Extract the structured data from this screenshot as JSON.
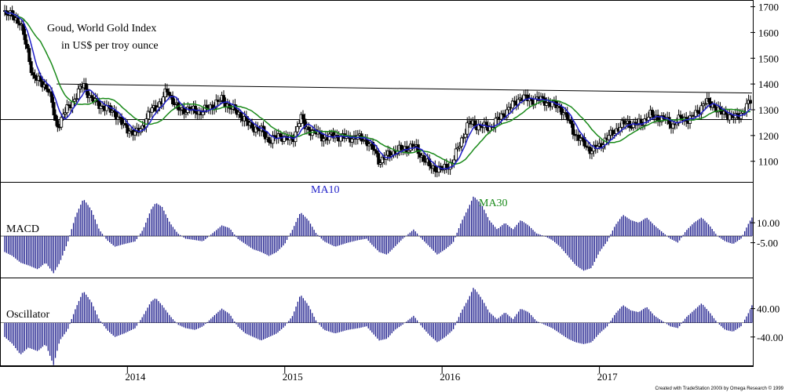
{
  "chart_data": [
    {
      "type": "candlestick",
      "title_line1": "Goud, World Gold Index",
      "title_line2": "in US$ per troy ounce",
      "yticks": [
        "1100",
        "1200",
        "1300",
        "1400",
        "1500",
        "1600",
        "1700"
      ],
      "ylim": [
        1020,
        1720
      ],
      "xlim": [
        2013.15,
        2017.92
      ],
      "xticks": [
        "2014",
        "2015",
        "2016",
        "2017"
      ],
      "ma10_label": "MA10",
      "ma30_label": "MA30",
      "colors": {
        "ma10": "#1f1fc8",
        "ma30": "#1a8a1a",
        "candle_up": "#ffffff",
        "candle_down": "#000000",
        "resistance": "#000000",
        "support": "#000000"
      },
      "resistance_line": {
        "x": [
          2013.5,
          2017.92
        ],
        "y": [
          1400,
          1365
        ]
      },
      "support_line": {
        "y": 1262
      },
      "closes": [
        [
          2013.17,
          1680
        ],
        [
          2013.27,
          1640
        ],
        [
          2013.35,
          1430
        ],
        [
          2013.45,
          1380
        ],
        [
          2013.5,
          1230
        ],
        [
          2013.55,
          1290
        ],
        [
          2013.6,
          1330
        ],
        [
          2013.67,
          1400
        ],
        [
          2013.72,
          1340
        ],
        [
          2013.8,
          1310
        ],
        [
          2013.87,
          1290
        ],
        [
          2013.92,
          1240
        ],
        [
          2014.0,
          1205
        ],
        [
          2014.05,
          1240
        ],
        [
          2014.1,
          1300
        ],
        [
          2014.17,
          1330
        ],
        [
          2014.2,
          1380
        ],
        [
          2014.27,
          1300
        ],
        [
          2014.35,
          1300
        ],
        [
          2014.42,
          1290
        ],
        [
          2014.5,
          1320
        ],
        [
          2014.55,
          1340
        ],
        [
          2014.6,
          1310
        ],
        [
          2014.67,
          1280
        ],
        [
          2014.72,
          1240
        ],
        [
          2014.8,
          1220
        ],
        [
          2014.85,
          1180
        ],
        [
          2014.92,
          1200
        ],
        [
          2015.0,
          1180
        ],
        [
          2015.05,
          1275
        ],
        [
          2015.08,
          1230
        ],
        [
          2015.15,
          1210
        ],
        [
          2015.2,
          1190
        ],
        [
          2015.27,
          1200
        ],
        [
          2015.35,
          1190
        ],
        [
          2015.4,
          1195
        ],
        [
          2015.47,
          1180
        ],
        [
          2015.52,
          1140
        ],
        [
          2015.55,
          1100
        ],
        [
          2015.6,
          1120
        ],
        [
          2015.65,
          1140
        ],
        [
          2015.72,
          1150
        ],
        [
          2015.77,
          1160
        ],
        [
          2015.82,
          1120
        ],
        [
          2015.87,
          1080
        ],
        [
          2015.95,
          1065
        ],
        [
          2016.02,
          1100
        ],
        [
          2016.07,
          1180
        ],
        [
          2016.12,
          1250
        ],
        [
          2016.17,
          1240
        ],
        [
          2016.25,
          1230
        ],
        [
          2016.3,
          1260
        ],
        [
          2016.35,
          1290
        ],
        [
          2016.45,
          1350
        ],
        [
          2016.5,
          1340
        ],
        [
          2016.58,
          1340
        ],
        [
          2016.65,
          1320
        ],
        [
          2016.7,
          1310
        ],
        [
          2016.75,
          1260
        ],
        [
          2016.8,
          1200
        ],
        [
          2016.85,
          1170
        ],
        [
          2016.9,
          1140
        ],
        [
          2016.95,
          1160
        ],
        [
          2017.0,
          1190
        ],
        [
          2017.07,
          1230
        ],
        [
          2017.12,
          1250
        ],
        [
          2017.17,
          1240
        ],
        [
          2017.22,
          1250
        ],
        [
          2017.27,
          1280
        ],
        [
          2017.32,
          1270
        ],
        [
          2017.37,
          1260
        ],
        [
          2017.42,
          1240
        ],
        [
          2017.47,
          1270
        ],
        [
          2017.52,
          1260
        ],
        [
          2017.57,
          1290
        ],
        [
          2017.62,
          1330
        ],
        [
          2017.67,
          1320
        ],
        [
          2017.72,
          1290
        ],
        [
          2017.77,
          1280
        ],
        [
          2017.82,
          1270
        ],
        [
          2017.87,
          1300
        ],
        [
          2017.92,
          1340
        ]
      ]
    },
    {
      "type": "bar",
      "name": "MACD",
      "yticks": [
        "10.00",
        "-5.00"
      ],
      "ylim": [
        -30,
        36
      ],
      "bars": [
        [
          2013.17,
          -12
        ],
        [
          2013.22,
          -15
        ],
        [
          2013.27,
          -20
        ],
        [
          2013.32,
          -22
        ],
        [
          2013.38,
          -25
        ],
        [
          2013.43,
          -20
        ],
        [
          2013.48,
          -28
        ],
        [
          2013.52,
          -20
        ],
        [
          2013.57,
          -5
        ],
        [
          2013.62,
          15
        ],
        [
          2013.67,
          28
        ],
        [
          2013.72,
          20
        ],
        [
          2013.77,
          5
        ],
        [
          2013.82,
          -3
        ],
        [
          2013.87,
          -8
        ],
        [
          2013.93,
          -6
        ],
        [
          2014.0,
          -4
        ],
        [
          2014.05,
          5
        ],
        [
          2014.1,
          20
        ],
        [
          2014.13,
          25
        ],
        [
          2014.17,
          22
        ],
        [
          2014.22,
          10
        ],
        [
          2014.27,
          2
        ],
        [
          2014.32,
          -2
        ],
        [
          2014.38,
          -3
        ],
        [
          2014.43,
          -4
        ],
        [
          2014.5,
          3
        ],
        [
          2014.55,
          8
        ],
        [
          2014.6,
          6
        ],
        [
          2014.65,
          -2
        ],
        [
          2014.7,
          -6
        ],
        [
          2014.75,
          -10
        ],
        [
          2014.8,
          -12
        ],
        [
          2014.85,
          -15
        ],
        [
          2014.9,
          -12
        ],
        [
          2014.95,
          -6
        ],
        [
          2015.0,
          5
        ],
        [
          2015.05,
          18
        ],
        [
          2015.1,
          12
        ],
        [
          2015.15,
          2
        ],
        [
          2015.2,
          -4
        ],
        [
          2015.27,
          -8
        ],
        [
          2015.35,
          -5
        ],
        [
          2015.42,
          -3
        ],
        [
          2015.47,
          -2
        ],
        [
          2015.5,
          -6
        ],
        [
          2015.55,
          -12
        ],
        [
          2015.6,
          -14
        ],
        [
          2015.65,
          -8
        ],
        [
          2015.7,
          -2
        ],
        [
          2015.77,
          5
        ],
        [
          2015.82,
          -2
        ],
        [
          2015.87,
          -8
        ],
        [
          2015.92,
          -14
        ],
        [
          2015.97,
          -10
        ],
        [
          2016.02,
          -5
        ],
        [
          2016.07,
          10
        ],
        [
          2016.12,
          22
        ],
        [
          2016.15,
          30
        ],
        [
          2016.2,
          24
        ],
        [
          2016.25,
          12
        ],
        [
          2016.3,
          5
        ],
        [
          2016.35,
          10
        ],
        [
          2016.4,
          5
        ],
        [
          2016.45,
          12
        ],
        [
          2016.5,
          8
        ],
        [
          2016.55,
          2
        ],
        [
          2016.6,
          0
        ],
        [
          2016.65,
          -3
        ],
        [
          2016.7,
          -8
        ],
        [
          2016.75,
          -15
        ],
        [
          2016.8,
          -22
        ],
        [
          2016.85,
          -26
        ],
        [
          2016.9,
          -24
        ],
        [
          2016.95,
          -12
        ],
        [
          2017.0,
          -4
        ],
        [
          2017.05,
          8
        ],
        [
          2017.1,
          16
        ],
        [
          2017.15,
          12
        ],
        [
          2017.2,
          10
        ],
        [
          2017.25,
          14
        ],
        [
          2017.3,
          8
        ],
        [
          2017.35,
          3
        ],
        [
          2017.4,
          -2
        ],
        [
          2017.45,
          -5
        ],
        [
          2017.5,
          4
        ],
        [
          2017.55,
          10
        ],
        [
          2017.6,
          14
        ],
        [
          2017.65,
          8
        ],
        [
          2017.7,
          0
        ],
        [
          2017.75,
          -4
        ],
        [
          2017.8,
          -6
        ],
        [
          2017.85,
          -2
        ],
        [
          2017.9,
          10
        ],
        [
          2017.92,
          14
        ]
      ]
    },
    {
      "type": "bar",
      "name": "Oscillator",
      "yticks": [
        "40.00",
        "-40.00"
      ],
      "ylim": [
        -120,
        110
      ],
      "bars": [
        [
          2013.17,
          -40
        ],
        [
          2013.22,
          -60
        ],
        [
          2013.27,
          -90
        ],
        [
          2013.32,
          -70
        ],
        [
          2013.38,
          -80
        ],
        [
          2013.43,
          -60
        ],
        [
          2013.48,
          -120
        ],
        [
          2013.52,
          -50
        ],
        [
          2013.57,
          -20
        ],
        [
          2013.62,
          40
        ],
        [
          2013.67,
          90
        ],
        [
          2013.72,
          60
        ],
        [
          2013.77,
          10
        ],
        [
          2013.82,
          -20
        ],
        [
          2013.87,
          -40
        ],
        [
          2013.93,
          -30
        ],
        [
          2014.0,
          -15
        ],
        [
          2014.05,
          20
        ],
        [
          2014.1,
          60
        ],
        [
          2014.13,
          70
        ],
        [
          2014.17,
          50
        ],
        [
          2014.22,
          20
        ],
        [
          2014.27,
          -5
        ],
        [
          2014.32,
          -15
        ],
        [
          2014.38,
          -20
        ],
        [
          2014.43,
          -10
        ],
        [
          2014.5,
          20
        ],
        [
          2014.55,
          40
        ],
        [
          2014.6,
          25
        ],
        [
          2014.65,
          -10
        ],
        [
          2014.7,
          -30
        ],
        [
          2014.75,
          -40
        ],
        [
          2014.8,
          -50
        ],
        [
          2014.85,
          -40
        ],
        [
          2014.9,
          -30
        ],
        [
          2014.95,
          -10
        ],
        [
          2015.0,
          20
        ],
        [
          2015.05,
          80
        ],
        [
          2015.1,
          50
        ],
        [
          2015.15,
          5
        ],
        [
          2015.2,
          -20
        ],
        [
          2015.27,
          -30
        ],
        [
          2015.35,
          -20
        ],
        [
          2015.42,
          -15
        ],
        [
          2015.47,
          -10
        ],
        [
          2015.5,
          -25
        ],
        [
          2015.55,
          -50
        ],
        [
          2015.6,
          -45
        ],
        [
          2015.65,
          -20
        ],
        [
          2015.7,
          -5
        ],
        [
          2015.77,
          20
        ],
        [
          2015.82,
          -10
        ],
        [
          2015.87,
          -35
        ],
        [
          2015.92,
          -55
        ],
        [
          2015.97,
          -40
        ],
        [
          2016.02,
          -20
        ],
        [
          2016.07,
          30
        ],
        [
          2016.12,
          70
        ],
        [
          2016.15,
          100
        ],
        [
          2016.2,
          70
        ],
        [
          2016.25,
          30
        ],
        [
          2016.3,
          10
        ],
        [
          2016.35,
          30
        ],
        [
          2016.4,
          10
        ],
        [
          2016.45,
          40
        ],
        [
          2016.5,
          30
        ],
        [
          2016.55,
          5
        ],
        [
          2016.6,
          -5
        ],
        [
          2016.65,
          -15
        ],
        [
          2016.7,
          -30
        ],
        [
          2016.75,
          -45
        ],
        [
          2016.8,
          -55
        ],
        [
          2016.85,
          -60
        ],
        [
          2016.9,
          -55
        ],
        [
          2016.95,
          -30
        ],
        [
          2017.0,
          -10
        ],
        [
          2017.05,
          25
        ],
        [
          2017.1,
          50
        ],
        [
          2017.15,
          35
        ],
        [
          2017.2,
          30
        ],
        [
          2017.25,
          45
        ],
        [
          2017.3,
          20
        ],
        [
          2017.35,
          5
        ],
        [
          2017.4,
          -10
        ],
        [
          2017.45,
          -15
        ],
        [
          2017.5,
          15
        ],
        [
          2017.55,
          35
        ],
        [
          2017.6,
          55
        ],
        [
          2017.65,
          30
        ],
        [
          2017.7,
          0
        ],
        [
          2017.75,
          -20
        ],
        [
          2017.8,
          -25
        ],
        [
          2017.85,
          -10
        ],
        [
          2017.9,
          30
        ],
        [
          2017.92,
          50
        ]
      ]
    }
  ],
  "credit": "Created with TradeStation 2000i by Omega Research © 1999"
}
